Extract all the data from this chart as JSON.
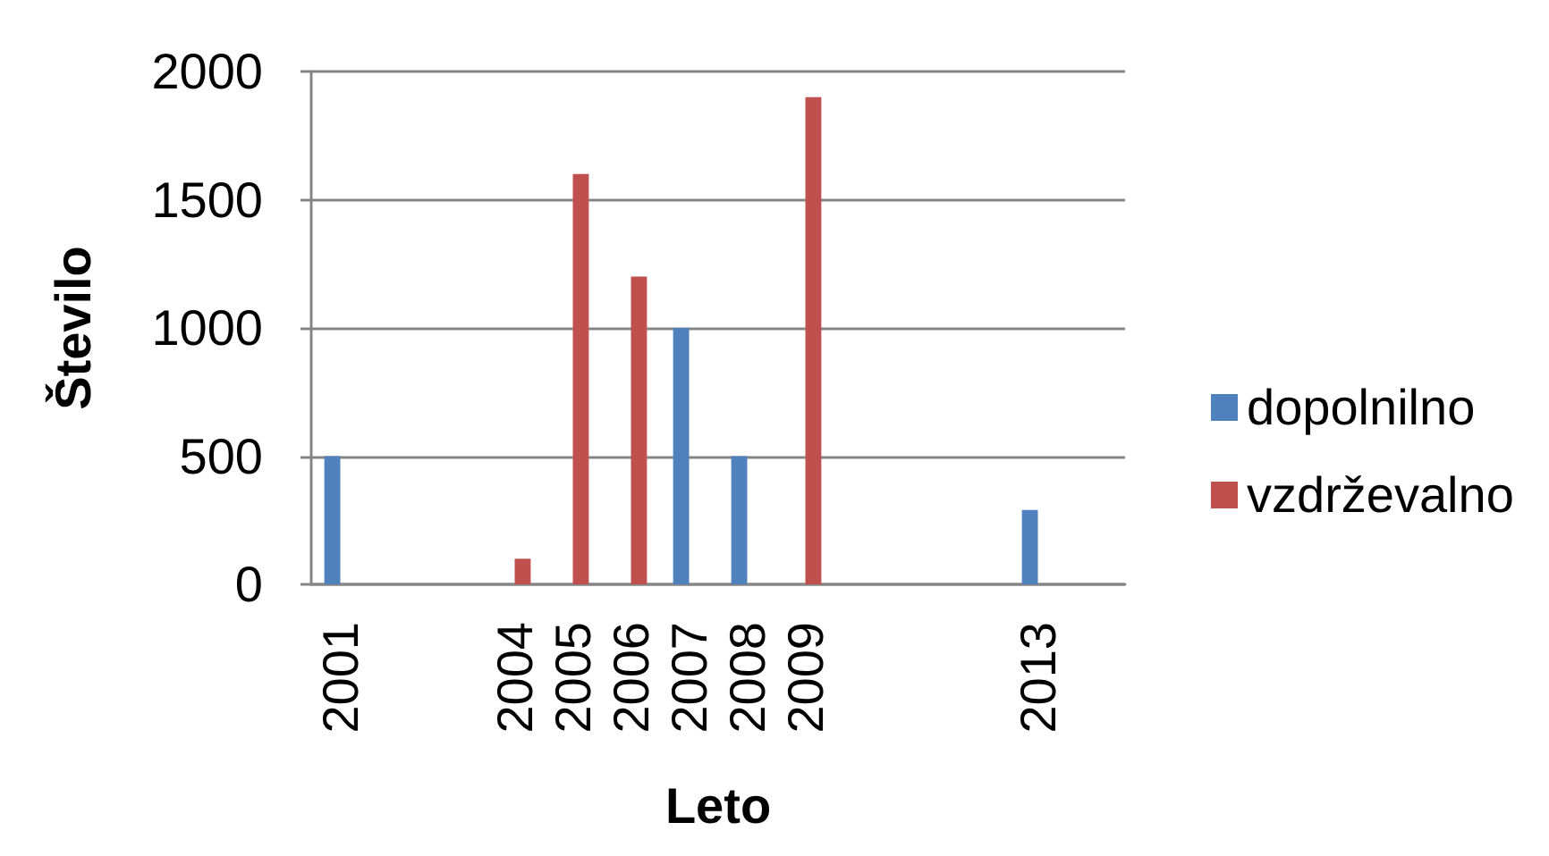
{
  "chart_data": {
    "type": "bar",
    "xlabel": "Leto",
    "ylabel": "Število",
    "categories": [
      "2001",
      null,
      null,
      "2004",
      "2005",
      "2006",
      "2007",
      "2008",
      "2009",
      null,
      null,
      null,
      "2013",
      null
    ],
    "series": [
      {
        "name": "dopolnilno",
        "color": "#4f81bd",
        "values": [
          500,
          null,
          null,
          null,
          null,
          null,
          1000,
          500,
          null,
          null,
          null,
          null,
          290,
          null
        ]
      },
      {
        "name": "vzdrževalno",
        "color": "#c0504d",
        "values": [
          null,
          null,
          null,
          100,
          1600,
          1200,
          null,
          null,
          1900,
          null,
          null,
          null,
          null,
          null
        ]
      }
    ],
    "ylim": [
      0,
      2000
    ],
    "yticks": [
      0,
      500,
      1000,
      1500,
      2000
    ],
    "grid": "y",
    "legend": "right"
  }
}
